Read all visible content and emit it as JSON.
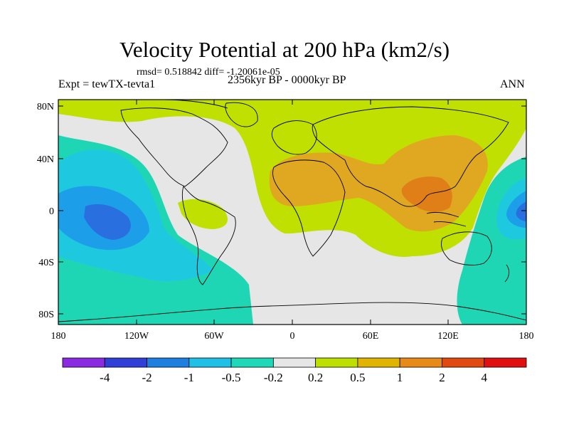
{
  "title": "Velocity Potential at 200 hPa (km2/s)",
  "stats": "rmsd= 0.518842 diff= -1.20061e-05",
  "expt": "Expt = tewTX-tevta1",
  "period": "2356kyr BP - 0000kyr BP",
  "season": "ANN",
  "lat_labels": [
    "80N",
    "40N",
    "0",
    "40S",
    "80S"
  ],
  "lon_labels": [
    "180",
    "120W",
    "60W",
    "0",
    "60E",
    "120E",
    "180"
  ],
  "colorbar": {
    "labels": [
      "-4",
      "-2",
      "-1",
      "-0.5",
      "-0.2",
      "0.2",
      "0.5",
      "1",
      "2",
      "4"
    ],
    "colors": [
      "#8a2be2",
      "#2f3fd8",
      "#1d7fe0",
      "#1ec0e6",
      "#1fd8b8",
      "#e6e6e6",
      "#bde000",
      "#e0b400",
      "#e88a18",
      "#e04a10",
      "#e01010"
    ]
  },
  "legend_colors": {
    "lt_neg2": "#2a6fe0",
    "neg2_neg1": "#1d9ee8",
    "neg1_neg05": "#1ec9e0",
    "neg05_neg02": "#1fd6b4",
    "neutral": "#e6e6e6",
    "pos02_pos05": "#bfe000",
    "pos05_pos1": "#e0a820",
    "pos1_pos2": "#e07e18"
  }
}
